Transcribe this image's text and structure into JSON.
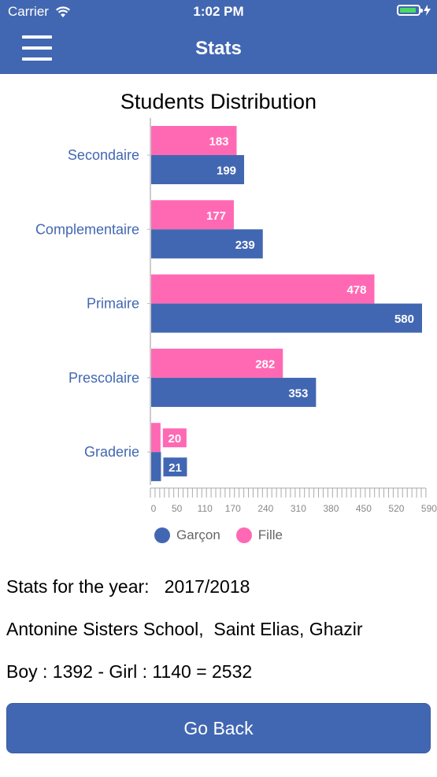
{
  "status_bar": {
    "carrier": "Carrier",
    "time": "1:02 PM",
    "battery_color": "#4cd964"
  },
  "nav": {
    "title": "Stats"
  },
  "theme": {
    "accent": "#4267b2",
    "fille_color": "#ff69b4",
    "garcon_color": "#4267b2"
  },
  "chart_data": {
    "type": "bar",
    "orientation": "horizontal",
    "title": "Students Distribution",
    "categories": [
      "Secondaire",
      "Complementaire",
      "Primaire",
      "Prescolaire",
      "Graderie"
    ],
    "series": [
      {
        "name": "Fille",
        "values": [
          183,
          177,
          478,
          282,
          20
        ]
      },
      {
        "name": "Garçon",
        "values": [
          199,
          239,
          580,
          353,
          21
        ]
      }
    ],
    "x_ticks": [
      "0",
      "50",
      "110",
      "170",
      "240",
      "310",
      "380",
      "450",
      "520",
      "590"
    ],
    "xlim": [
      0,
      590
    ],
    "legend_position": "bottom"
  },
  "info": {
    "year_line": "Stats for the year:   2017/2018",
    "school_line": "Antonine Sisters School,  Saint Elias, Ghazir",
    "totals_line": "Boy : 1392 - Girl : 1140 = 2532"
  },
  "button": {
    "go_back": "Go Back"
  }
}
